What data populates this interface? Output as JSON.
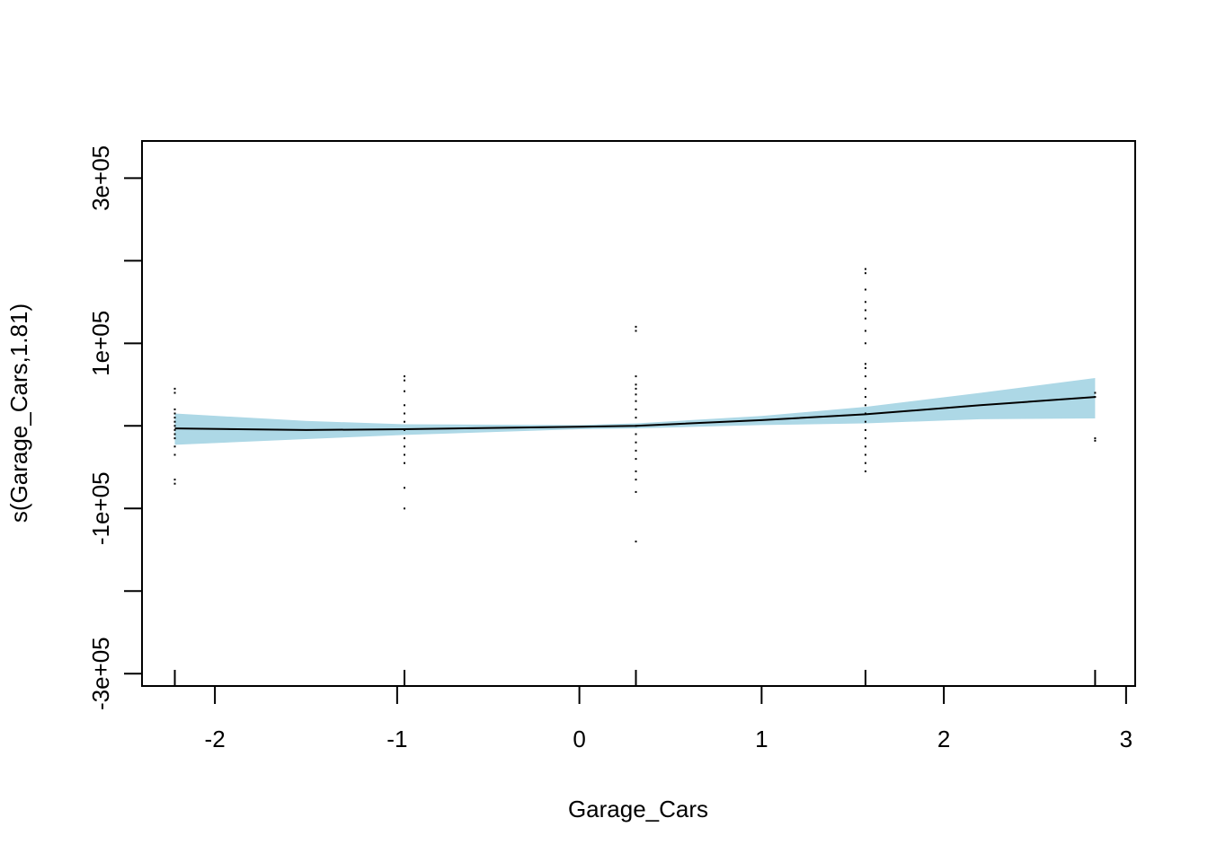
{
  "chart_data": {
    "type": "line",
    "title": "",
    "xlabel": "Garage_Cars",
    "ylabel": "s(Garage_Cars,1.81)",
    "xlim": [
      -2.4,
      3.05
    ],
    "ylim": [
      -315000,
      345000
    ],
    "x_ticks": [
      -2,
      -1,
      0,
      1,
      2,
      3
    ],
    "x_tick_labels": [
      "-2",
      "-1",
      "0",
      "1",
      "2",
      "3"
    ],
    "y_ticks": [
      -300000,
      -200000,
      -100000,
      0,
      100000,
      200000,
      300000
    ],
    "y_tick_labels": [
      "-3e+05",
      "",
      "-1e+05",
      "",
      "1e+05",
      "",
      "3e+05"
    ],
    "grid": false,
    "curve": {
      "x": [
        -2.22,
        -1.5,
        -0.96,
        0,
        0.31,
        1,
        1.57,
        2.2,
        2.83
      ],
      "y": [
        -3000,
        -5000,
        -4000,
        -1000,
        0,
        7000,
        14000,
        25000,
        35000
      ]
    },
    "confidence_band": {
      "x": [
        -2.22,
        -1.5,
        -0.96,
        0,
        0.31,
        1,
        1.57,
        2.2,
        2.83
      ],
      "upper": [
        15000,
        6000,
        2000,
        1000,
        3000,
        12000,
        23000,
        40000,
        58000
      ],
      "lower": [
        -23000,
        -16000,
        -11000,
        -4000,
        -3000,
        1000,
        3000,
        8000,
        9000
      ]
    },
    "rug": [
      -2.22,
      -0.96,
      0.31,
      1.57,
      2.83
    ],
    "partial_residuals": [
      {
        "x": -2.22,
        "y": [
          45000,
          40000,
          20000,
          15000,
          10000,
          5000,
          0,
          -5000,
          -10000,
          -15000,
          -25000,
          -35000,
          -65000,
          -70000
        ]
      },
      {
        "x": -0.96,
        "y": [
          60000,
          55000,
          42000,
          25000,
          15000,
          5000,
          -5000,
          -15000,
          -25000,
          -35000,
          -45000,
          -75000,
          -100000
        ]
      },
      {
        "x": 0.31,
        "y": [
          120000,
          115000,
          60000,
          50000,
          45000,
          38000,
          30000,
          20000,
          10000,
          0,
          -10000,
          -20000,
          -30000,
          -40000,
          -55000,
          -65000,
          -80000,
          -140000
        ]
      },
      {
        "x": 1.57,
        "y": [
          190000,
          185000,
          165000,
          150000,
          140000,
          130000,
          115000,
          100000,
          75000,
          70000,
          60000,
          45000,
          35000,
          25000,
          15000,
          5000,
          -5000,
          -15000,
          -25000,
          -35000,
          -45000,
          -55000
        ]
      },
      {
        "x": 2.83,
        "y": [
          40000,
          35000,
          -15000,
          -18000
        ]
      }
    ],
    "colors": {
      "band": "#add8e6",
      "line": "#000000",
      "points": "#000000",
      "axes": "#000000"
    }
  }
}
